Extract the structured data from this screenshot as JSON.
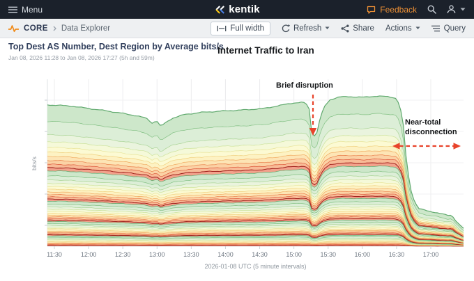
{
  "topbar": {
    "menu_label": "Menu",
    "brand": "kentik",
    "feedback_label": "Feedback"
  },
  "toolbar": {
    "breadcrumb": {
      "section": "CORE",
      "page": "Data Explorer"
    },
    "full_width_label": "Full width",
    "refresh_label": "Refresh",
    "share_label": "Share",
    "actions_label": "Actions",
    "query_label": "Query"
  },
  "panel": {
    "title": "Top Dest AS Number, Dest Region by Average bits/s",
    "subtitle": "Jan 08, 2026 11:28 to Jan 08, 2026 17:27 (5h and 59m)",
    "headline": "Internet Traffic to Iran"
  },
  "colors": {
    "topbar_bg": "#1b212b",
    "accent_orange": "#f08c1d",
    "feedback_orange": "#ed9035",
    "annotation_arrow_red": "#e8432b",
    "title_navy": "#33415e"
  },
  "chart_data": {
    "type": "area",
    "stacked": true,
    "title": "Internet Traffic to Iran",
    "xlabel": "2026-01-08 UTC (5 minute intervals)",
    "ylabel": "bits/s",
    "x_range": [
      "11:28",
      "17:27"
    ],
    "x_ticks": [
      "11:30",
      "12:00",
      "12:30",
      "13:00",
      "13:30",
      "14:00",
      "14:30",
      "15:00",
      "15:30",
      "16:00",
      "16:30",
      "17:00"
    ],
    "y_tick_labels_visible": false,
    "grid": true,
    "legend": false,
    "series_note": "~50 unlabeled stacked Dest AS Number / Dest Region series, palette cycling green-yellow-orange-red-maroon, values relative (no y-axis numbers shown)",
    "values_relative": true,
    "annotations": [
      {
        "id": "brief-disruption",
        "text": "Brief disruption",
        "arrow": "down"
      },
      {
        "id": "near-total-disconnection",
        "text": "Near-total disconnection",
        "arrow": "horizontal-double"
      }
    ],
    "total_profile": [
      [
        0.0,
        0.945
      ],
      [
        0.03,
        0.942
      ],
      [
        0.06,
        0.936
      ],
      [
        0.1,
        0.921
      ],
      [
        0.14,
        0.906
      ],
      [
        0.18,
        0.889
      ],
      [
        0.22,
        0.869
      ],
      [
        0.24,
        0.853
      ],
      [
        0.252,
        0.822
      ],
      [
        0.262,
        0.843
      ],
      [
        0.272,
        0.8
      ],
      [
        0.285,
        0.828
      ],
      [
        0.3,
        0.856
      ],
      [
        0.33,
        0.881
      ],
      [
        0.37,
        0.895
      ],
      [
        0.42,
        0.904
      ],
      [
        0.47,
        0.911
      ],
      [
        0.52,
        0.921
      ],
      [
        0.56,
        0.942
      ],
      [
        0.59,
        0.958
      ],
      [
        0.615,
        0.962
      ],
      [
        0.628,
        0.94
      ],
      [
        0.636,
        0.745
      ],
      [
        0.643,
        0.738
      ],
      [
        0.648,
        0.762
      ],
      [
        0.655,
        0.852
      ],
      [
        0.665,
        0.93
      ],
      [
        0.678,
        0.978
      ],
      [
        0.7,
        0.998
      ],
      [
        0.73,
        1.0
      ],
      [
        0.76,
        0.996
      ],
      [
        0.79,
        1.004
      ],
      [
        0.82,
        1.0
      ],
      [
        0.836,
        0.992
      ],
      [
        0.846,
        0.952
      ],
      [
        0.855,
        0.82
      ],
      [
        0.863,
        0.56
      ],
      [
        0.872,
        0.39
      ],
      [
        0.882,
        0.3
      ],
      [
        0.892,
        0.252
      ],
      [
        0.91,
        0.238
      ],
      [
        0.93,
        0.228
      ],
      [
        0.95,
        0.214
      ],
      [
        0.965,
        0.205
      ],
      [
        0.972,
        0.21
      ],
      [
        0.978,
        0.182
      ],
      [
        0.988,
        0.15
      ],
      [
        1.0,
        0.118
      ]
    ],
    "series_weights": [
      10.5,
      8.5,
      4.5,
      3.5,
      3.0,
      2.8,
      2.6,
      2.4,
      2.2,
      2.0,
      3.2,
      2.6,
      2.2,
      2.0,
      1.8,
      1.7,
      1.6,
      1.5,
      1.4,
      1.3,
      2.0,
      1.7,
      1.5,
      1.35,
      1.25,
      1.15,
      1.1,
      1.05,
      1.0,
      0.95,
      1.3,
      1.15,
      1.05,
      0.95,
      0.9,
      0.85,
      0.8,
      0.75,
      0.7,
      0.68,
      0.9,
      0.82,
      0.75,
      0.7,
      0.66,
      0.62,
      0.58,
      0.55,
      0.52,
      0.5
    ],
    "palette_cycle": [
      {
        "fill": "#cde7ca",
        "stroke": "#5fa96d"
      },
      {
        "fill": "#dcEed7",
        "stroke": "#82c083"
      },
      {
        "fill": "#eaf4de",
        "stroke": "#aad496"
      },
      {
        "fill": "#f5f9d9",
        "stroke": "#cce29a"
      },
      {
        "fill": "#fcfad3",
        "stroke": "#e7e398"
      },
      {
        "fill": "#fdf2c3",
        "stroke": "#f0d07e"
      },
      {
        "fill": "#fde5b5",
        "stroke": "#f0a95e"
      },
      {
        "fill": "#fbd2a5",
        "stroke": "#e97e49"
      },
      {
        "fill": "#f8bb97",
        "stroke": "#dc5738"
      },
      {
        "fill": "#f2a28c",
        "stroke": "#a3251f"
      }
    ]
  }
}
